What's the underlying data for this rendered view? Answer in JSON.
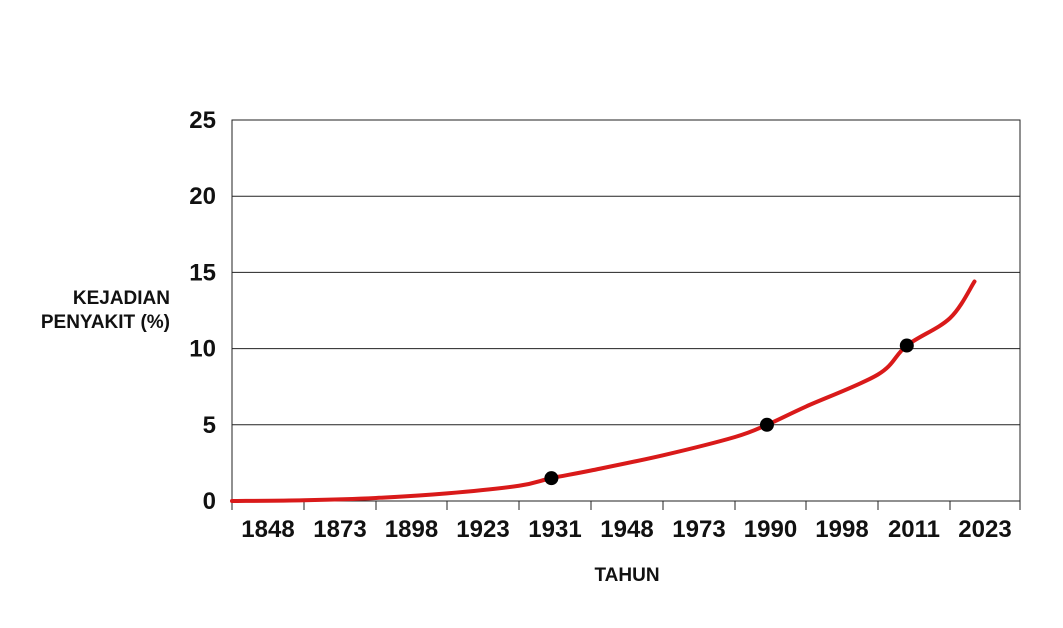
{
  "chart_data": {
    "type": "line",
    "title": "",
    "ylabel_lines": [
      "KEJADIAN",
      "PENYAKIT (%)"
    ],
    "xlabel": "TAHUN",
    "x_tick_labels": [
      "1848",
      "1873",
      "1898",
      "1923",
      "1931",
      "1948",
      "1973",
      "1990",
      "1998",
      "2011",
      "2023"
    ],
    "y_ticks": [
      0,
      5,
      10,
      15,
      20,
      25
    ],
    "y_tick_labels": [
      "0",
      "5",
      "10",
      "15",
      "20",
      "25"
    ],
    "ylim": [
      0,
      25
    ],
    "grid": true,
    "series": [
      {
        "color": "#d91a1a",
        "points": [
          {
            "x_pos": 0,
            "y": 0.0
          },
          {
            "x_pos": 1,
            "y": 0.05
          },
          {
            "x_pos": 2,
            "y": 0.2
          },
          {
            "x_pos": 3,
            "y": 0.5
          },
          {
            "x_pos": 4,
            "y": 1.0
          },
          {
            "x_pos": 4.45,
            "y": 1.5
          },
          {
            "x_pos": 5,
            "y": 2.0
          },
          {
            "x_pos": 6,
            "y": 3.0
          },
          {
            "x_pos": 7,
            "y": 4.2
          },
          {
            "x_pos": 7.45,
            "y": 5.0
          },
          {
            "x_pos": 8,
            "y": 6.2
          },
          {
            "x_pos": 9,
            "y": 8.3
          },
          {
            "x_pos": 9.4,
            "y": 10.2
          },
          {
            "x_pos": 10,
            "y": 12.0
          },
          {
            "x_pos": 10.35,
            "y": 14.4
          }
        ]
      }
    ],
    "markers": [
      {
        "x_pos": 4.45,
        "y": 1.5,
        "color": "#000000"
      },
      {
        "x_pos": 7.45,
        "y": 5.0,
        "color": "#000000"
      },
      {
        "x_pos": 9.4,
        "y": 10.2,
        "color": "#000000"
      }
    ]
  }
}
